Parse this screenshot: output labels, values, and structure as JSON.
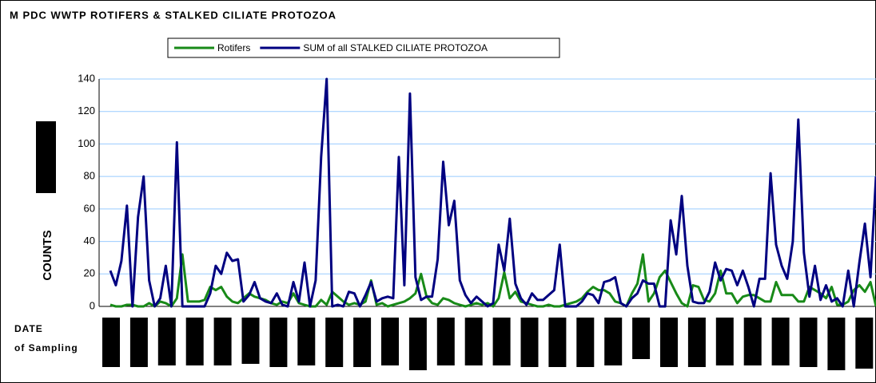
{
  "chart_data": {
    "type": "line",
    "title": "M PDC WWTP ROTIFERS & STALKED CILIATE PROTOZOA",
    "y_label": "COUNTS",
    "x_label": [
      "DATE",
      "of Sampling"
    ],
    "categories": [
      null,
      null,
      null,
      null,
      null,
      null,
      null,
      null,
      null,
      null,
      null,
      null,
      null,
      null,
      null,
      null,
      null,
      null,
      null,
      null,
      null,
      null,
      null,
      null,
      null,
      null,
      null,
      null,
      null,
      null,
      null,
      null,
      null,
      null,
      null,
      null,
      null,
      null,
      null,
      null,
      null,
      null,
      null,
      null,
      null,
      null,
      null,
      null,
      null,
      null,
      null,
      null,
      null,
      null,
      null,
      null,
      null,
      null,
      null,
      null,
      null,
      null,
      null,
      null,
      null,
      null,
      null,
      null,
      null,
      null,
      null,
      null,
      null,
      null,
      null,
      null,
      null,
      null,
      null,
      null,
      null,
      null,
      null,
      null,
      null,
      null,
      null,
      null,
      null,
      null,
      null,
      null,
      null,
      null,
      null,
      null,
      null,
      null,
      null,
      null,
      null,
      null,
      null,
      null,
      null,
      null,
      null,
      null,
      null,
      null,
      null,
      null,
      null,
      null,
      null,
      null,
      null,
      null,
      null,
      null,
      null,
      null,
      null,
      null,
      null,
      null,
      null,
      null,
      null,
      null,
      null,
      null,
      null,
      null,
      null,
      null,
      null,
      null,
      null
    ],
    "series": [
      {
        "name": "Rotifers",
        "color": "#188a18",
        "values": [
          1,
          0,
          0,
          1,
          1,
          0,
          0,
          2,
          0,
          3,
          2,
          0,
          5,
          32,
          3,
          3,
          3,
          4,
          12,
          10,
          12,
          6,
          3,
          2,
          5,
          8,
          6,
          5,
          4,
          2,
          1,
          3,
          2,
          8,
          2,
          1,
          0,
          0,
          4,
          1,
          9,
          6,
          3,
          1,
          2,
          1,
          3,
          16,
          1,
          2,
          0,
          1,
          2,
          3,
          5,
          8,
          20,
          6,
          2,
          1,
          5,
          4,
          2,
          1,
          0,
          1,
          2,
          1,
          2,
          0,
          5,
          21,
          5,
          9,
          3,
          2,
          1,
          0,
          0,
          1,
          0,
          0,
          1,
          2,
          3,
          5,
          9,
          12,
          10,
          10,
          8,
          3,
          2,
          0,
          8,
          14,
          32,
          3,
          8,
          18,
          22,
          15,
          8,
          2,
          0,
          13,
          12,
          4,
          3,
          8,
          22,
          8,
          8,
          2,
          6,
          7,
          7,
          5,
          3,
          3,
          15,
          7,
          7,
          7,
          3,
          3,
          12,
          10,
          8,
          5,
          12,
          1,
          1,
          3,
          10,
          13,
          9,
          15,
          0
        ]
      },
      {
        "name": "SUM of all STALKED CILIATE PROTOZOA",
        "color": "#000080",
        "values": [
          22,
          13,
          28,
          62,
          0,
          55,
          80,
          16,
          0,
          5,
          25,
          0,
          101,
          0,
          0,
          0,
          0,
          0,
          8,
          25,
          20,
          33,
          28,
          29,
          3,
          7,
          15,
          5,
          3,
          2,
          8,
          1,
          0,
          15,
          3,
          27,
          0,
          16,
          92,
          140,
          0,
          1,
          0,
          9,
          8,
          0,
          7,
          15,
          3,
          5,
          6,
          5,
          92,
          13,
          131,
          18,
          4,
          6,
          6,
          29,
          89,
          50,
          65,
          16,
          7,
          2,
          6,
          3,
          0,
          2,
          38,
          22,
          54,
          14,
          5,
          1,
          8,
          4,
          4,
          7,
          10,
          38,
          0,
          0,
          0,
          3,
          8,
          7,
          2,
          15,
          16,
          18,
          2,
          0,
          5,
          8,
          16,
          14,
          14,
          0,
          0,
          53,
          32,
          68,
          25,
          3,
          2,
          2,
          9,
          27,
          16,
          23,
          22,
          13,
          22,
          12,
          0,
          17,
          17,
          82,
          38,
          25,
          17,
          40,
          115,
          33,
          6,
          25,
          4,
          13,
          3,
          5,
          0,
          22,
          0,
          27,
          51,
          18,
          80
        ]
      }
    ],
    "ylim": [
      0,
      140
    ],
    "yticks": [
      0,
      20,
      40,
      60,
      80,
      100,
      120,
      140
    ],
    "grid": true,
    "legend": "top"
  }
}
